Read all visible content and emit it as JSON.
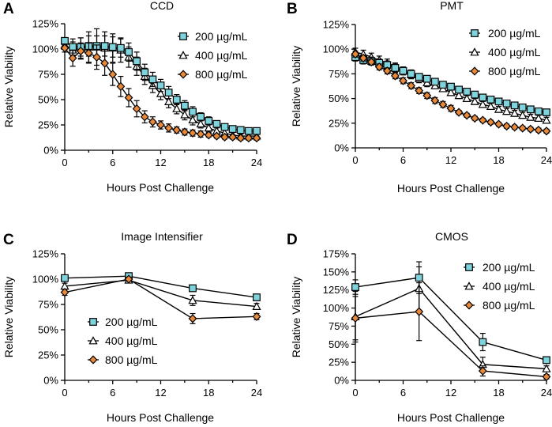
{
  "colors": {
    "s200_fill": "#7fd3dc",
    "s400_fill": "#ffffff",
    "s800_fill": "#e8893a",
    "stroke": "#000000"
  },
  "chart_data": [
    {
      "panel": "A",
      "type": "line",
      "title": "CCD",
      "xlabel": "Hours Post Challenge",
      "ylabel": "Relative Viability",
      "xlim": [
        0,
        24
      ],
      "ylim": [
        0,
        125
      ],
      "xticks": [
        "0",
        "6",
        "12",
        "18",
        "24"
      ],
      "yticks": [
        "0%",
        "25%",
        "50%",
        "75%",
        "100%",
        "125%"
      ],
      "legend_position": "top-right",
      "series": [
        {
          "name": "200 µg/mL",
          "marker": "square",
          "x": [
            0,
            1,
            2,
            3,
            4,
            5,
            6,
            7,
            8,
            9,
            10,
            11,
            12,
            13,
            14,
            15,
            16,
            17,
            18,
            19,
            20,
            21,
            22,
            23,
            24
          ],
          "values": [
            108,
            102,
            102,
            103,
            103,
            103,
            102,
            101,
            97,
            88,
            77,
            70,
            64,
            57,
            50,
            44,
            38,
            33,
            29,
            26,
            23,
            21,
            20,
            19,
            19
          ],
          "errors": [
            3,
            8,
            9,
            10,
            10,
            10,
            10,
            9,
            9,
            9,
            8,
            7,
            6,
            6,
            5,
            5,
            5,
            4,
            4,
            3,
            3,
            3,
            2,
            2,
            2
          ]
        },
        {
          "name": "400 µg/mL",
          "marker": "triangle",
          "x": [
            0,
            1,
            2,
            3,
            4,
            5,
            6,
            7,
            8,
            9,
            10,
            11,
            12,
            13,
            14,
            15,
            16,
            17,
            18,
            19,
            20,
            21,
            22,
            23,
            24
          ],
          "values": [
            104,
            99,
            101,
            102,
            102,
            101,
            101,
            99,
            92,
            83,
            73,
            64,
            56,
            48,
            41,
            35,
            30,
            26,
            22,
            19,
            17,
            15,
            14,
            14,
            14
          ],
          "errors": [
            3,
            8,
            10,
            15,
            18,
            16,
            14,
            12,
            10,
            9,
            8,
            7,
            6,
            6,
            5,
            5,
            5,
            4,
            4,
            3,
            3,
            3,
            2,
            2,
            2
          ]
        },
        {
          "name": "800 µg/mL",
          "marker": "diamond",
          "x": [
            0,
            1,
            2,
            3,
            4,
            5,
            6,
            7,
            8,
            9,
            10,
            11,
            12,
            13,
            14,
            15,
            16,
            17,
            18,
            19,
            20,
            21,
            22,
            23,
            24
          ],
          "values": [
            101,
            91,
            98,
            96,
            92,
            86,
            75,
            63,
            52,
            41,
            33,
            28,
            25,
            22,
            20,
            18,
            17,
            16,
            15,
            14,
            13,
            13,
            12,
            12,
            12
          ],
          "errors": [
            4,
            8,
            8,
            10,
            12,
            12,
            11,
            10,
            9,
            8,
            6,
            5,
            4,
            4,
            3,
            3,
            3,
            3,
            2,
            2,
            2,
            2,
            2,
            2,
            2
          ]
        }
      ]
    },
    {
      "panel": "B",
      "type": "line",
      "title": "PMT",
      "xlabel": "Hours Post Challenge",
      "ylabel": "Relative Viability",
      "xlim": [
        0,
        24
      ],
      "ylim": [
        0,
        125
      ],
      "xticks": [
        "0",
        "6",
        "12",
        "18",
        "24"
      ],
      "yticks": [
        "0%",
        "25%",
        "50%",
        "75%",
        "100%",
        "125%"
      ],
      "legend_position": "top-right",
      "series": [
        {
          "name": "200 µg/mL",
          "marker": "square",
          "x": [
            0,
            1,
            2,
            3,
            4,
            5,
            6,
            7,
            8,
            9,
            10,
            11,
            12,
            13,
            14,
            15,
            16,
            17,
            18,
            19,
            20,
            21,
            22,
            23,
            24
          ],
          "values": [
            92,
            89,
            88,
            86,
            84,
            81,
            78,
            75,
            72,
            70,
            67,
            64,
            62,
            59,
            57,
            54,
            51,
            49,
            47,
            45,
            43,
            41,
            39,
            37,
            36
          ],
          "errors": [
            4,
            4,
            4,
            4,
            4,
            4,
            4,
            4,
            3,
            3,
            3,
            3,
            3,
            3,
            3,
            3,
            3,
            3,
            3,
            3,
            3,
            3,
            2,
            2,
            2
          ]
        },
        {
          "name": "400 µg/mL",
          "marker": "triangle",
          "x": [
            0,
            1,
            2,
            3,
            4,
            5,
            6,
            7,
            8,
            9,
            10,
            11,
            12,
            13,
            14,
            15,
            16,
            17,
            18,
            19,
            20,
            21,
            22,
            23,
            24
          ],
          "values": [
            97,
            95,
            92,
            89,
            86,
            82,
            78,
            74,
            70,
            66,
            63,
            60,
            56,
            53,
            50,
            47,
            44,
            42,
            39,
            37,
            35,
            33,
            31,
            30,
            28
          ],
          "errors": [
            4,
            4,
            4,
            4,
            4,
            4,
            4,
            4,
            4,
            4,
            3,
            3,
            3,
            3,
            3,
            3,
            3,
            3,
            3,
            3,
            3,
            3,
            3,
            3,
            3
          ]
        },
        {
          "name": "800 µg/mL",
          "marker": "diamond",
          "x": [
            0,
            1,
            2,
            3,
            4,
            5,
            6,
            7,
            8,
            9,
            10,
            11,
            12,
            13,
            14,
            15,
            16,
            17,
            18,
            19,
            20,
            21,
            22,
            23,
            24
          ],
          "values": [
            95,
            91,
            87,
            82,
            78,
            73,
            68,
            63,
            58,
            53,
            48,
            44,
            40,
            36,
            33,
            30,
            28,
            26,
            24,
            22,
            21,
            20,
            19,
            18,
            17
          ],
          "errors": [
            3,
            3,
            3,
            3,
            3,
            3,
            3,
            3,
            3,
            3,
            3,
            3,
            3,
            2,
            2,
            2,
            2,
            2,
            2,
            2,
            2,
            2,
            2,
            2,
            2
          ]
        }
      ]
    },
    {
      "panel": "C",
      "type": "line",
      "title": "Image Intensifier",
      "xlabel": "Hours Post Challenge",
      "ylabel": "Relative Viability",
      "xlim": [
        0,
        24
      ],
      "ylim": [
        0,
        125
      ],
      "xticks": [
        "0",
        "6",
        "12",
        "18",
        "24"
      ],
      "yticks": [
        "0%",
        "25%",
        "50%",
        "75%",
        "100%",
        "125%"
      ],
      "legend_position": "bottom-left",
      "series": [
        {
          "name": "200 µg/mL",
          "marker": "square",
          "x": [
            0,
            8,
            16,
            24
          ],
          "values": [
            101,
            103,
            91,
            82
          ],
          "errors": [
            3,
            2,
            3,
            3
          ]
        },
        {
          "name": "400 µg/mL",
          "marker": "triangle",
          "x": [
            0,
            8,
            16,
            24
          ],
          "values": [
            93,
            99,
            79,
            73
          ],
          "errors": [
            3,
            2,
            5,
            3
          ]
        },
        {
          "name": "800 µg/mL",
          "marker": "diamond",
          "x": [
            0,
            8,
            16,
            24
          ],
          "values": [
            87,
            100,
            61,
            63
          ],
          "errors": [
            3,
            2,
            5,
            3
          ]
        }
      ]
    },
    {
      "panel": "D",
      "type": "line",
      "title": "CMOS",
      "xlabel": "Hours Post Challenge",
      "ylabel": "Relative Viability",
      "xlim": [
        0,
        24
      ],
      "ylim": [
        0,
        175
      ],
      "xticks": [
        "0",
        "6",
        "12",
        "18",
        "24"
      ],
      "yticks": [
        "0%",
        "25%",
        "50%",
        "75%",
        "100%",
        "125%",
        "150%",
        "175%"
      ],
      "legend_position": "top-right",
      "series": [
        {
          "name": "200 µg/mL",
          "marker": "square",
          "x": [
            0,
            8,
            16,
            24
          ],
          "values": [
            129,
            142,
            53,
            28
          ],
          "errors": [
            10,
            22,
            12,
            4
          ]
        },
        {
          "name": "400 µg/mL",
          "marker": "triangle",
          "x": [
            0,
            8,
            16,
            24
          ],
          "values": [
            88,
            127,
            22,
            16
          ],
          "errors": [
            35,
            30,
            10,
            4
          ]
        },
        {
          "name": "800 µg/mL",
          "marker": "diamond",
          "x": [
            0,
            8,
            16,
            24
          ],
          "values": [
            86,
            95,
            13,
            5
          ],
          "errors": [
            30,
            40,
            7,
            3
          ]
        }
      ]
    }
  ]
}
